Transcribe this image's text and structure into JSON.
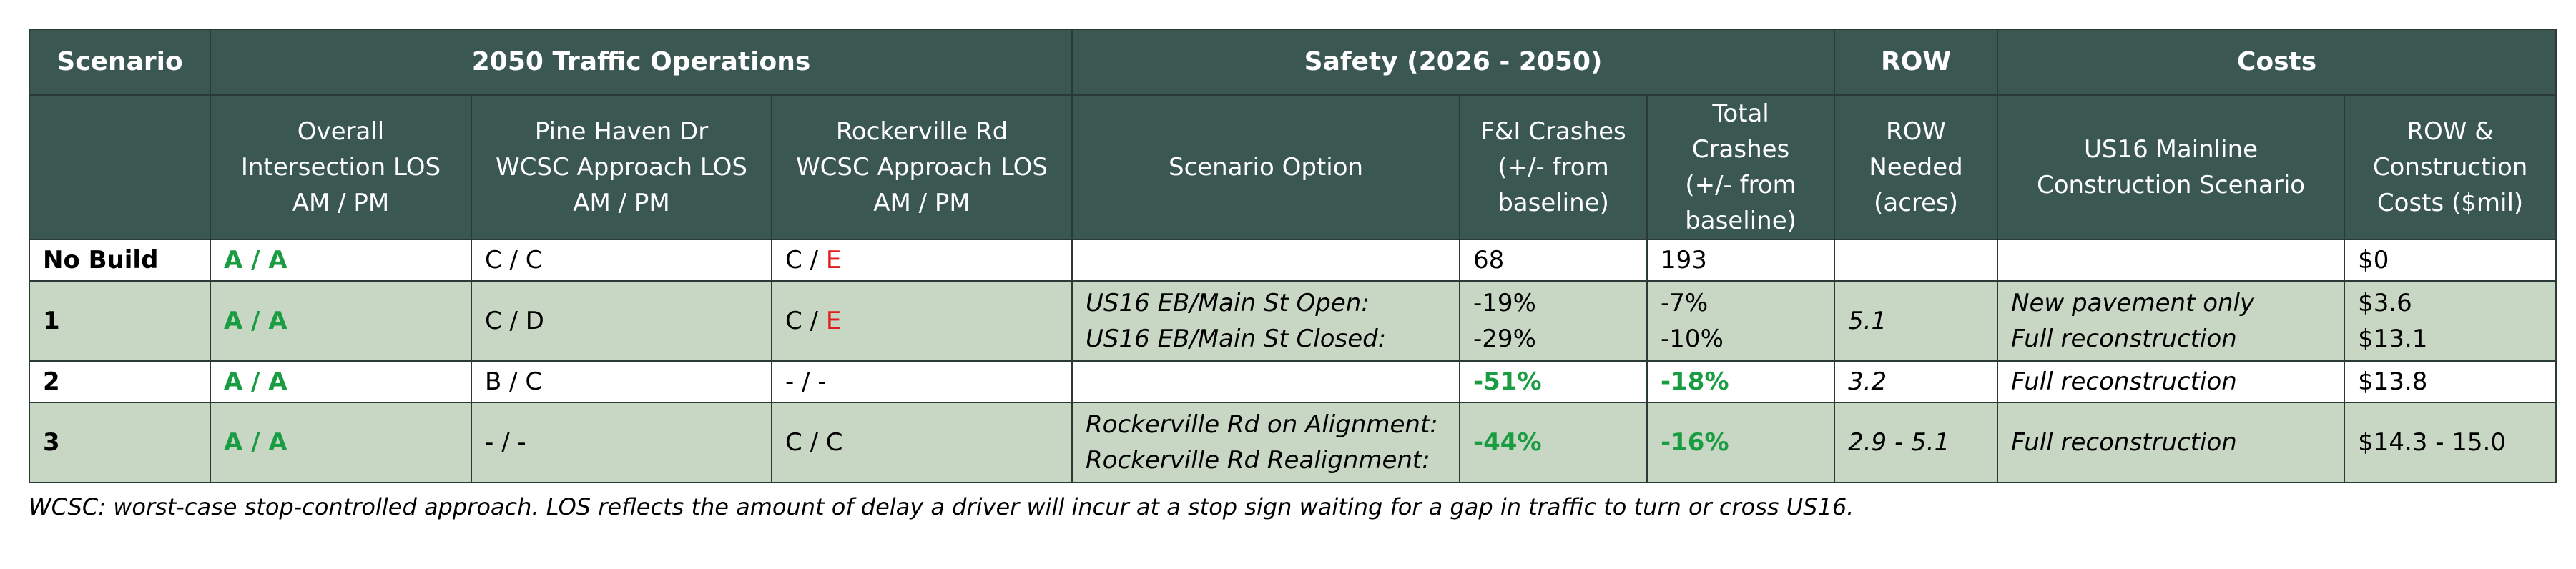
{
  "header": {
    "groups": {
      "scenario": "Scenario",
      "traffic": "2050 Traffic Operations",
      "safety": "Safety (2026 - 2050)",
      "row": "ROW",
      "costs": "Costs"
    },
    "columns": {
      "overall_los": [
        "Overall",
        "Intersection LOS",
        "AM / PM"
      ],
      "pine_haven": [
        "Pine Haven Dr",
        "WCSC Approach LOS",
        "AM / PM"
      ],
      "rockerville": [
        "Rockerville Rd",
        "WCSC Approach LOS",
        "AM / PM"
      ],
      "scenario_option": [
        "Scenario Option"
      ],
      "fi_crashes": [
        "F&I Crashes",
        "(+/- from",
        "baseline)"
      ],
      "total_crashes": [
        "Total",
        "Crashes",
        "(+/- from",
        "baseline)"
      ],
      "row_needed": [
        "ROW",
        "Needed",
        "(acres)"
      ],
      "us16_mainline": [
        "US16 Mainline",
        "Construction Scenario"
      ],
      "row_construction_costs": [
        "ROW &",
        "Construction",
        "Costs ($mil)"
      ]
    }
  },
  "rows": [
    {
      "scenario": "No Build",
      "overall_los": "A / A",
      "pine_haven": "C / C",
      "rockerville_a": "C / ",
      "rockerville_b": "E",
      "scenario_option": [
        "",
        ""
      ],
      "fi_crashes": [
        "68",
        ""
      ],
      "total_crashes": [
        "193",
        ""
      ],
      "row_needed": "",
      "us16_mainline": [
        "",
        ""
      ],
      "costs": [
        "$0",
        ""
      ]
    },
    {
      "scenario": "1",
      "overall_los": "A / A",
      "pine_haven": "C / D",
      "rockerville_a": "C / ",
      "rockerville_b": "E",
      "scenario_option": [
        "US16 EB/Main St Open:",
        "US16 EB/Main St Closed:"
      ],
      "fi_crashes": [
        "-19%",
        "-29%"
      ],
      "total_crashes": [
        "-7%",
        "-10%"
      ],
      "row_needed": "5.1",
      "us16_mainline": [
        "New pavement only",
        "Full reconstruction"
      ],
      "costs": [
        "$3.6",
        "$13.1"
      ]
    },
    {
      "scenario": "2",
      "overall_los": "A / A",
      "pine_haven": "B / C",
      "rockerville_a": "- / -",
      "rockerville_b": "",
      "scenario_option": [
        "",
        ""
      ],
      "fi_crashes": [
        "-51%",
        ""
      ],
      "total_crashes": [
        "-18%",
        ""
      ],
      "row_needed": "3.2",
      "us16_mainline": [
        "Full reconstruction",
        ""
      ],
      "costs": [
        "$13.8",
        ""
      ]
    },
    {
      "scenario": "3",
      "overall_los": "A / A",
      "pine_haven": "- / -",
      "rockerville_a": "C / C",
      "rockerville_b": "",
      "scenario_option": [
        "Rockerville Rd on Alignment:",
        "Rockerville Rd Realignment:"
      ],
      "fi_crashes": [
        "-44%",
        ""
      ],
      "total_crashes": [
        "-16%",
        ""
      ],
      "row_needed": "2.9 - 5.1",
      "us16_mainline": [
        "Full reconstruction",
        ""
      ],
      "costs": [
        "$14.3 - 15.0",
        ""
      ]
    }
  ],
  "footnote": "WCSC: worst-case stop-controlled approach.  LOS reflects the amount of delay a driver will incur at a stop sign waiting for a gap in traffic to turn or cross US16.",
  "colors": {
    "header_bg": "#3a5751",
    "shaded_row_bg": "#c8d7c4",
    "good_value": "#1a9c42",
    "poor_value": "#e21c1c"
  }
}
